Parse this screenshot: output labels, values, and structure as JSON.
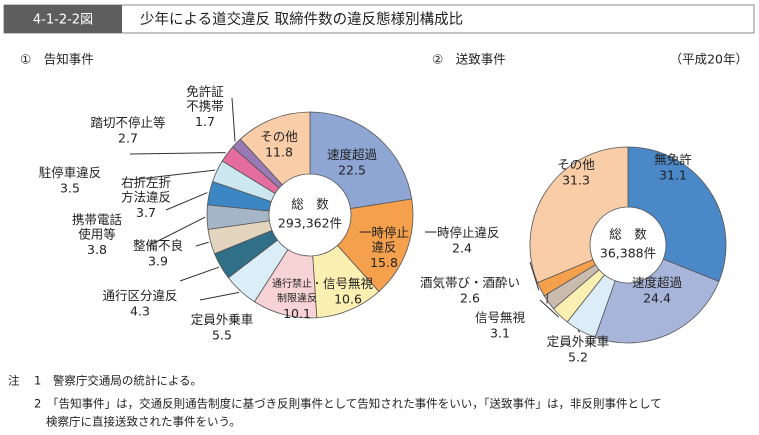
{
  "header": {
    "figure": "4-1-2-2図",
    "title": "少年による道交違反 取締件数の違反態様別構成比"
  },
  "chart_data": [
    {
      "type": "pie",
      "title": "①　告知事件",
      "categories": [
        "速度超過",
        "一時停止違反",
        "信号無視",
        "通行禁止・制限違反",
        "定員外乗車",
        "通行区分違反",
        "整備不良",
        "携帯電話使用等",
        "右折左折方法違反",
        "駐停車違反",
        "踏切不停止等",
        "免許証不携帯",
        "その他"
      ],
      "values": [
        22.5,
        15.8,
        10.6,
        10.1,
        5.5,
        4.3,
        3.9,
        3.8,
        3.7,
        3.5,
        2.7,
        1.7,
        11.8
      ],
      "colors": [
        "#8fa6d4",
        "#f4a04c",
        "#fbf0b2",
        "#f8d3d6",
        "#dbedf7",
        "#2f6f88",
        "#e3d4bd",
        "#a4b6c8",
        "#3d86c4",
        "#cde7f1",
        "#e46c9f",
        "#9a7ab5",
        "#f9cda8"
      ],
      "center_label": "総　数",
      "total_label": "293,362件"
    },
    {
      "type": "pie",
      "title": "②　送致事件",
      "annotation": "（平成20年）",
      "categories": [
        "無免許",
        "速度超過",
        "定員外乗車",
        "信号無視",
        "酒気帯び・酒酔い",
        "一時停止違反",
        "その他"
      ],
      "values": [
        31.1,
        24.4,
        5.2,
        3.1,
        2.6,
        2.4,
        31.3
      ],
      "colors": [
        "#4b88c8",
        "#a8b5db",
        "#dcedf7",
        "#fbf0b2",
        "#c9bcae",
        "#f4a04c",
        "#f9cda8"
      ],
      "center_label": "総　数",
      "total_label": "36,388件"
    }
  ],
  "notes": {
    "mark": "注",
    "items": [
      "1　警察庁交通局の統計による。",
      "2　「告知事件」は，交通反則通告制度に基づき反則事件として告知された事件をいい，「送致事件」は，非反則事件として",
      "検察庁に直接送致された事件をいう。"
    ]
  }
}
